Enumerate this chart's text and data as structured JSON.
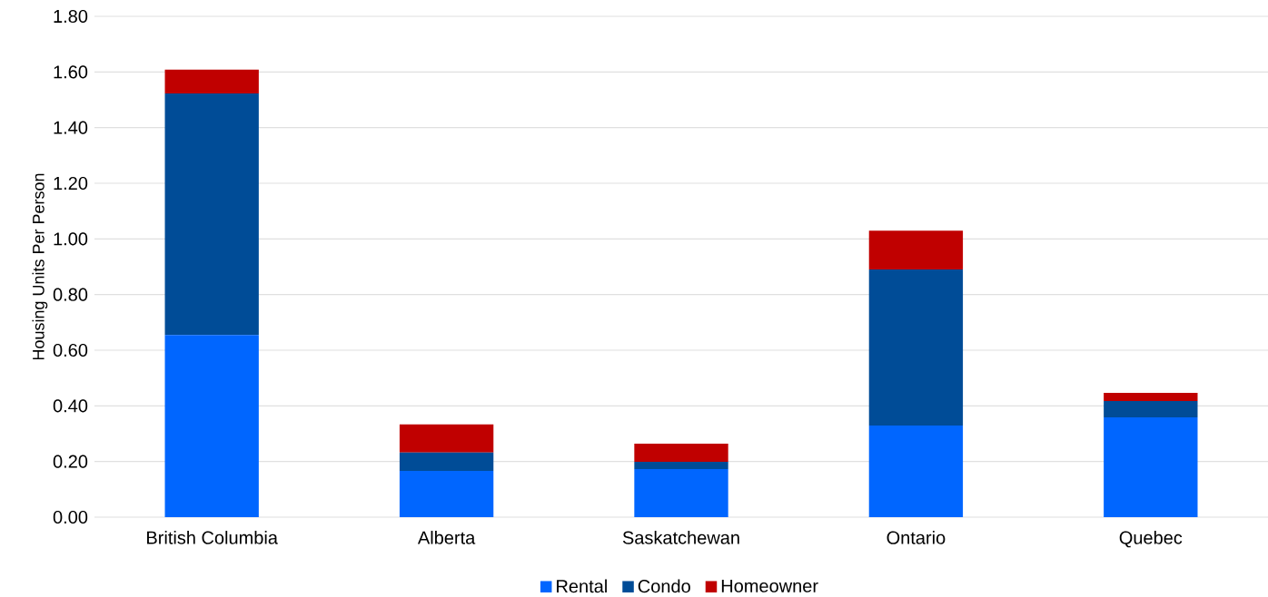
{
  "chart_data": {
    "type": "bar",
    "stacked": true,
    "ylabel": "Housing Units Per Person",
    "categories": [
      "British Columbia",
      "Alberta",
      "Saskatchewan",
      "Ontario",
      "Quebec"
    ],
    "series": [
      {
        "name": "Rental",
        "color": "#0066ff",
        "values": [
          0.655,
          0.166,
          0.173,
          0.329,
          0.359
        ]
      },
      {
        "name": "Condo",
        "color": "#004c97",
        "values": [
          0.868,
          0.066,
          0.026,
          0.561,
          0.058
        ]
      },
      {
        "name": "Homeowner",
        "color": "#c00000",
        "values": [
          0.085,
          0.101,
          0.065,
          0.14,
          0.03
        ]
      }
    ],
    "ylim": [
      0,
      1.8
    ],
    "yticks": [
      {
        "value": 0,
        "label": "0.00"
      },
      {
        "value": 0.2,
        "label": "0.20"
      },
      {
        "value": 0.4,
        "label": "0.40"
      },
      {
        "value": 0.6,
        "label": "0.60"
      },
      {
        "value": 0.8,
        "label": "0.80"
      },
      {
        "value": 1.0,
        "label": "1.00"
      },
      {
        "value": 1.2,
        "label": "1.20"
      },
      {
        "value": 1.4,
        "label": "1.40"
      },
      {
        "value": 1.6,
        "label": "1.60"
      },
      {
        "value": 1.8,
        "label": "1.80"
      }
    ],
    "grid": "y",
    "legend": "bottom"
  }
}
